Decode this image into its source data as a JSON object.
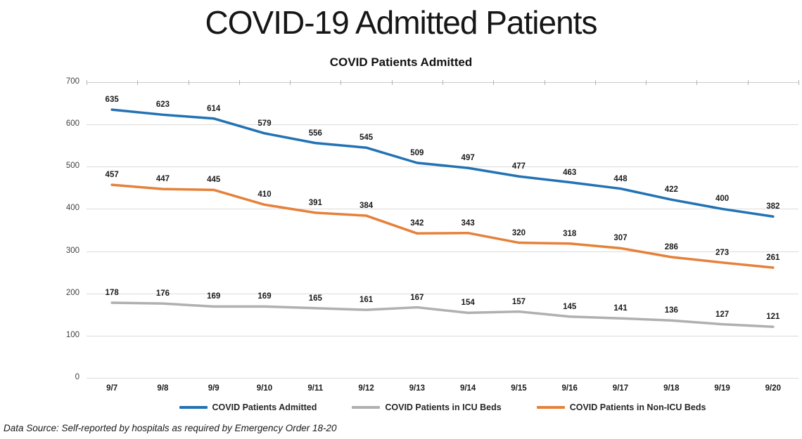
{
  "page": {
    "title": "COVID-19 Admitted Patients"
  },
  "chart_data": {
    "type": "line",
    "title": "COVID Patients Admitted",
    "categories": [
      "9/7",
      "9/8",
      "9/9",
      "9/10",
      "9/11",
      "9/12",
      "9/13",
      "9/14",
      "9/15",
      "9/16",
      "9/17",
      "9/18",
      "9/19",
      "9/20"
    ],
    "series": [
      {
        "name": "COVID Patients Admitted",
        "color": "#2272b4",
        "values": [
          635,
          623,
          614,
          579,
          556,
          545,
          509,
          497,
          477,
          463,
          448,
          422,
          400,
          382
        ]
      },
      {
        "name": "COVID Patients in ICU Beds",
        "color": "#b1afaf",
        "values": [
          178,
          176,
          169,
          169,
          165,
          161,
          167,
          154,
          157,
          145,
          141,
          136,
          127,
          121
        ]
      },
      {
        "name": "COVID Patients in Non-ICU Beds",
        "color": "#e5813a",
        "values": [
          457,
          447,
          445,
          410,
          391,
          384,
          342,
          343,
          320,
          318,
          307,
          286,
          273,
          261
        ]
      }
    ],
    "ylim": [
      0,
      700
    ],
    "yticks": [
      0,
      100,
      200,
      300,
      400,
      500,
      600,
      700
    ],
    "grid": true,
    "data_labels": true,
    "legend_position": "bottom",
    "colors": {
      "gridline": "#dbdbdb",
      "tick": "#b3b3b3",
      "axis_text": "#424242",
      "label_text": "#1a1a1a"
    }
  },
  "footer": {
    "source": "Data Source: Self-reported by hospitals as required by Emergency Order 18-20"
  }
}
